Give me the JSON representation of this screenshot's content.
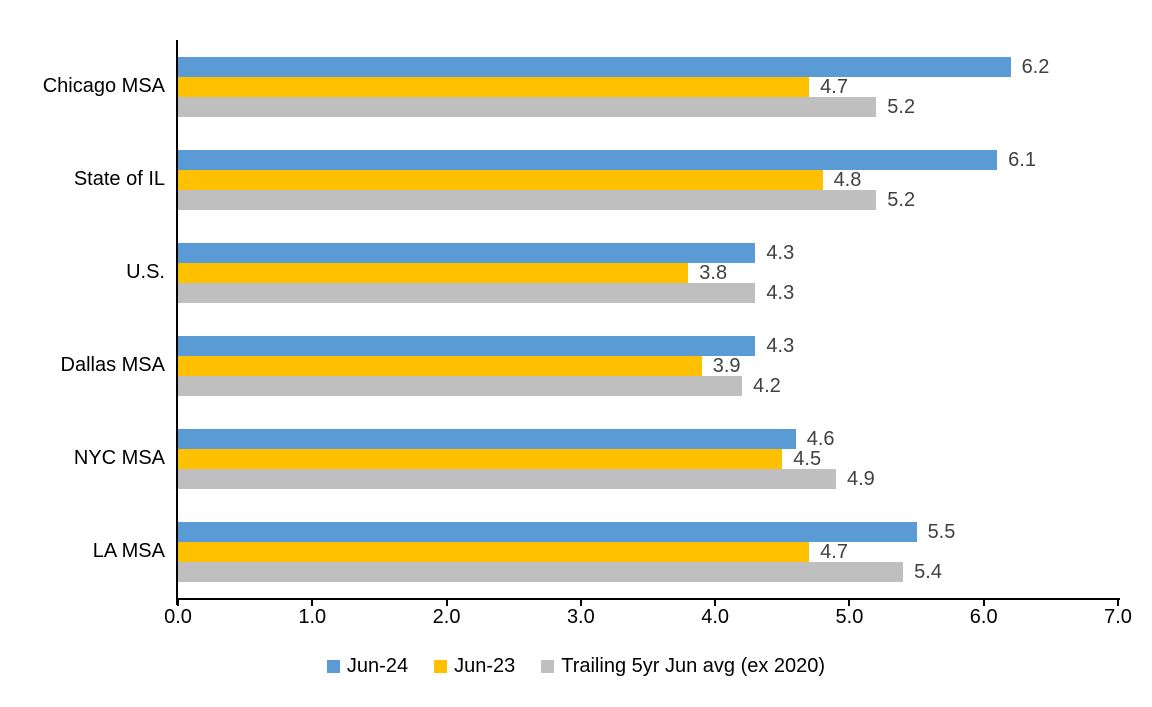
{
  "chart_data": {
    "type": "bar",
    "orientation": "horizontal",
    "title": "",
    "xlabel": "",
    "ylabel": "",
    "categories": [
      "Chicago MSA",
      "State of IL",
      "U.S.",
      "Dallas MSA",
      "NYC MSA",
      "LA MSA"
    ],
    "series": [
      {
        "name": "Jun-24",
        "color": "#5B9BD5",
        "values": [
          6.2,
          6.1,
          4.3,
          4.3,
          4.6,
          5.5
        ]
      },
      {
        "name": "Jun-23",
        "color": "#FFC000",
        "values": [
          4.7,
          4.8,
          3.8,
          3.9,
          4.5,
          4.7
        ]
      },
      {
        "name": "Trailing 5yr Jun avg (ex 2020)",
        "color": "#BFBFBF",
        "values": [
          5.2,
          5.2,
          4.3,
          4.2,
          4.9,
          5.4
        ]
      }
    ],
    "xlim": [
      0,
      7
    ],
    "xticks": [
      "0.0",
      "1.0",
      "2.0",
      "3.0",
      "4.0",
      "5.0",
      "6.0",
      "7.0"
    ],
    "grid": false,
    "legend_position": "bottom",
    "value_labels_shown": true,
    "value_label_color": "#404040",
    "axis_color": "#000000"
  }
}
